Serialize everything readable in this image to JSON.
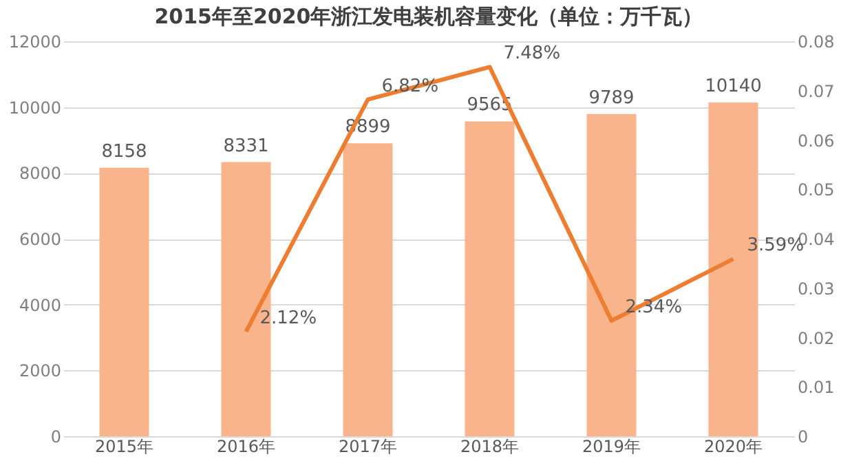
{
  "chart_data": {
    "type": "bar",
    "title": "2015年至2020年浙江发电装机容量变化（单位：万千瓦）",
    "categories": [
      "2015年",
      "2016年",
      "2017年",
      "2018年",
      "2019年",
      "2020年"
    ],
    "series": [
      {
        "color": "#f9b48c",
        "values": [
          8158,
          8331,
          8899,
          9565,
          9789,
          10140
        ]
      },
      {
        "type": "line",
        "axis": "y2",
        "color": "#ed7d31",
        "values": [
          null,
          0.0212,
          0.0682,
          0.0748,
          0.0234,
          0.0359
        ],
        "value_labels": [
          null,
          "2.12%",
          "6.82%",
          "7.48%",
          "2.34%",
          "3.59%"
        ]
      }
    ],
    "data_labels": true,
    "ylim": [
      0,
      12000
    ],
    "yticks": [
      0,
      2000,
      4000,
      6000,
      8000,
      10000,
      12000
    ],
    "y2lim": [
      0,
      0.08
    ],
    "y2ticks": [
      0,
      0.01,
      0.02,
      0.03,
      0.04,
      0.05,
      0.06,
      0.07,
      0.08
    ],
    "grid": "y",
    "marker": "none",
    "line_style": "solid"
  }
}
